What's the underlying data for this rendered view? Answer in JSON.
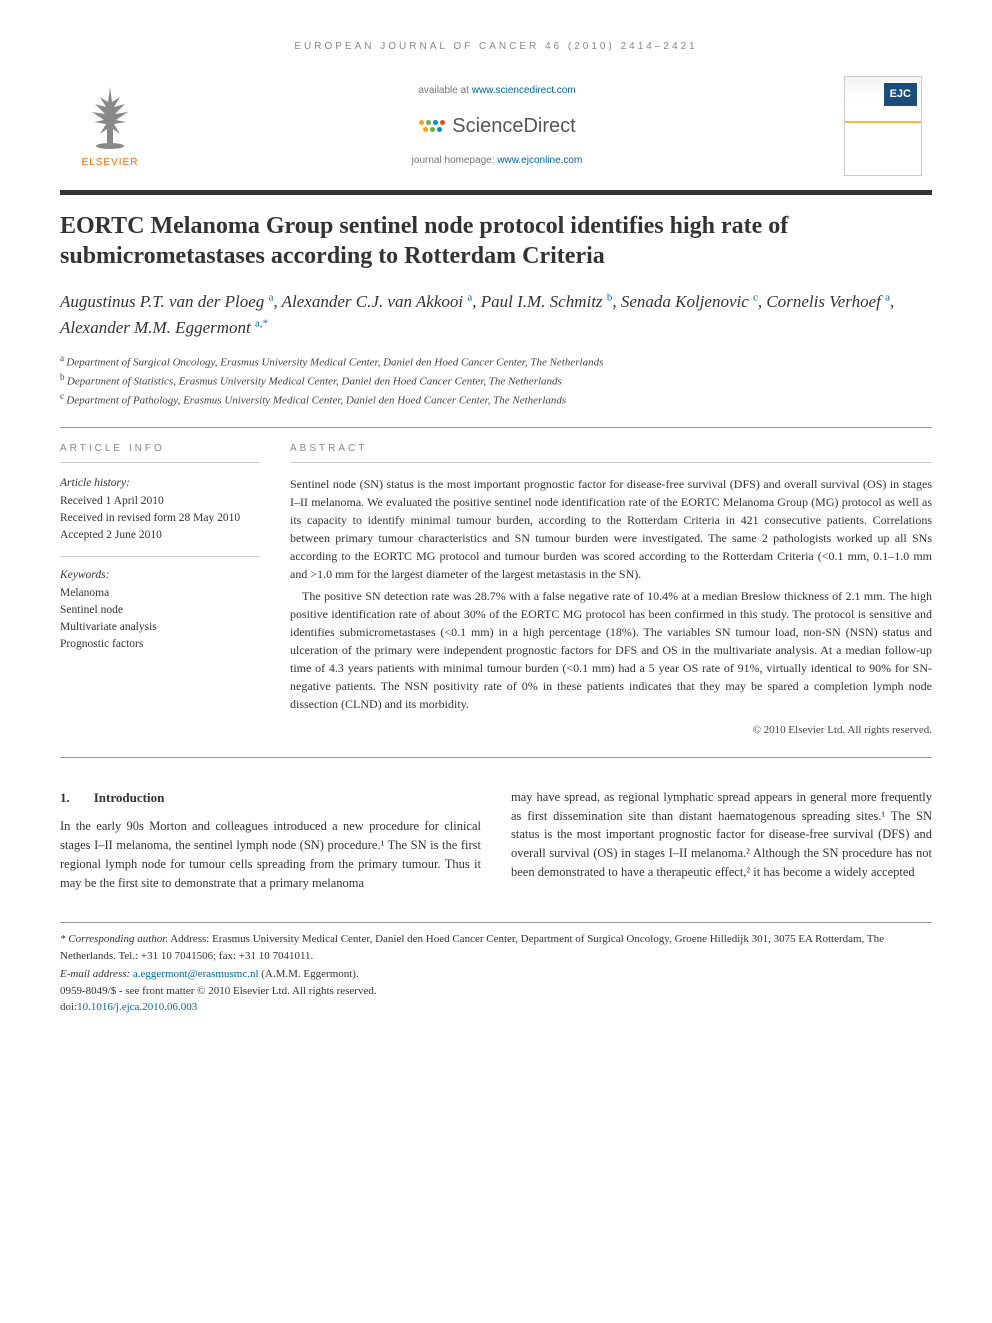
{
  "running_head": "EUROPEAN JOURNAL OF CANCER 46 (2010) 2414–2421",
  "masthead": {
    "elsevier": "ELSEVIER",
    "available": "available at ",
    "available_url": "www.sciencedirect.com",
    "sciencedirect": "ScienceDirect",
    "journal_home_prefix": "journal homepage: ",
    "journal_home_url": "www.ejconline.com",
    "cover_badge": "EJC",
    "sd_dot_colors": [
      "#f7a600",
      "#6cb33f",
      "#008fd5",
      "#e94e1b",
      "#f7a600",
      "#6cb33f",
      "#008fd5"
    ]
  },
  "title": "EORTC Melanoma Group sentinel node protocol identifies high rate of submicrometastases according to Rotterdam Criteria",
  "authors_html_parts": [
    {
      "name": "Augustinus P.T. van der Ploeg",
      "sup": "a"
    },
    {
      "name": "Alexander C.J. van Akkooi",
      "sup": "a"
    },
    {
      "name": "Paul I.M. Schmitz",
      "sup": "b"
    },
    {
      "name": "Senada Koljenovic",
      "sup": "c"
    },
    {
      "name": "Cornelis Verhoef",
      "sup": "a"
    },
    {
      "name": "Alexander M.M. Eggermont",
      "sup": "a,*"
    }
  ],
  "affiliations": [
    {
      "sup": "a",
      "text": "Department of Surgical Oncology, Erasmus University Medical Center, Daniel den Hoed Cancer Center, The Netherlands"
    },
    {
      "sup": "b",
      "text": "Department of Statistics, Erasmus University Medical Center, Daniel den Hoed Cancer Center, The Netherlands"
    },
    {
      "sup": "c",
      "text": "Department of Pathology, Erasmus University Medical Center, Daniel den Hoed Cancer Center, The Netherlands"
    }
  ],
  "article_info": {
    "head": "ARTICLE INFO",
    "history_title": "Article history:",
    "history": [
      "Received 1 April 2010",
      "Received in revised form 28 May 2010",
      "Accepted 2 June 2010"
    ],
    "keywords_title": "Keywords:",
    "keywords": [
      "Melanoma",
      "Sentinel node",
      "Multivariate analysis",
      "Prognostic factors"
    ]
  },
  "abstract": {
    "head": "ABSTRACT",
    "p1": "Sentinel node (SN) status is the most important prognostic factor for disease-free survival (DFS) and overall survival (OS) in stages I–II melanoma. We evaluated the positive sentinel node identification rate of the EORTC Melanoma Group (MG) protocol as well as its capacity to identify minimal tumour burden, according to the Rotterdam Criteria in 421 consecutive patients. Correlations between primary tumour characteristics and SN tumour burden were investigated. The same 2 pathologists worked up all SNs according to the EORTC MG protocol and tumour burden was scored according to the Rotterdam Criteria (<0.1 mm, 0.1–1.0 mm and >1.0 mm for the largest diameter of the largest metastasis in the SN).",
    "p2": "The positive SN detection rate was 28.7% with a false negative rate of 10.4% at a median Breslow thickness of 2.1 mm. The high positive identification rate of about 30% of the EORTC MG protocol has been confirmed in this study. The protocol is sensitive and identifies submicrometastases (<0.1 mm) in a high percentage (18%). The variables SN tumour load, non-SN (NSN) status and ulceration of the primary were independent prognostic factors for DFS and OS in the multivariate analysis. At a median follow-up time of 4.3 years patients with minimal tumour burden (<0.1 mm) had a 5 year OS rate of 91%, virtually identical to 90% for SN-negative patients. The NSN positivity rate of 0% in these patients indicates that they may be spared a completion lymph node dissection (CLND) and its morbidity.",
    "copyright": "© 2010 Elsevier Ltd. All rights reserved."
  },
  "body": {
    "sec_num": "1.",
    "sec_title": "Introduction",
    "col1": "In the early 90s Morton and colleagues introduced a new procedure for clinical stages I–II melanoma, the sentinel lymph node (SN) procedure.¹ The SN is the first regional lymph node for tumour cells spreading from the primary tumour. Thus it may be the first site to demonstrate that a primary melanoma",
    "col2": "may have spread, as regional lymphatic spread appears in general more frequently as first dissemination site than distant haematogenous spreading sites.¹ The SN status is the most important prognostic factor for disease-free survival (DFS) and overall survival (OS) in stages I–II melanoma.² Although the SN procedure has not been demonstrated to have a therapeutic effect,² it has become a widely accepted"
  },
  "footer": {
    "corr_label": "* Corresponding author.",
    "corr_text": " Address: Erasmus University Medical Center, Daniel den Hoed Cancer Center, Department of Surgical Oncology, Groene Hilledijk 301, 3075 EA Rotterdam, The Netherlands. Tel.: +31 10 7041506; fax: +31 10 7041011.",
    "email_label": "E-mail address: ",
    "email": "a.eggermont@erasmusmc.nl",
    "email_suffix": " (A.M.M. Eggermont).",
    "issn": "0959-8049/$ - see front matter © 2010 Elsevier Ltd. All rights reserved.",
    "doi_label": "doi:",
    "doi": "10.1016/j.ejca.2010.06.003"
  }
}
